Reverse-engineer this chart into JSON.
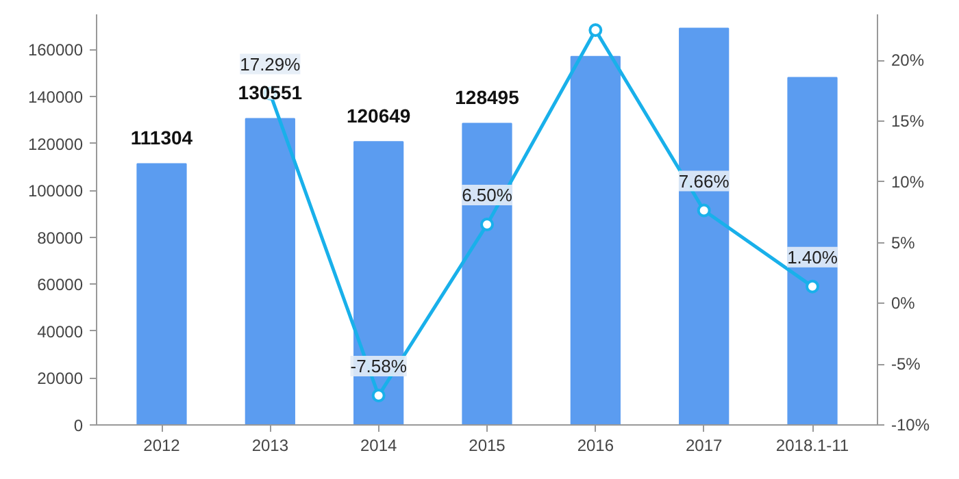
{
  "chart_data": {
    "type": "bar",
    "categories": [
      "2012",
      "2013",
      "2014",
      "2015",
      "2016",
      "2017",
      "2018.1-11"
    ],
    "series": [
      {
        "name": null,
        "color": "#5b9cf0",
        "values": [
          111304,
          130551,
          120649,
          128495,
          157000,
          169000,
          148000
        ],
        "value_labels": [
          "111304",
          "130551",
          "120649",
          "128495",
          null,
          null,
          null
        ]
      },
      {
        "name": null,
        "type": "line",
        "axis": "y2",
        "color": "#19b0ea",
        "values": [
          null,
          17.29,
          -7.58,
          6.5,
          22.5,
          7.66,
          1.4
        ],
        "value_labels": [
          null,
          "17.29%",
          "-7.58%",
          "6.50%",
          null,
          "7.66%",
          "1.40%"
        ]
      }
    ],
    "ylim": [
      0,
      175000
    ],
    "yticks": [
      0,
      20000,
      40000,
      60000,
      80000,
      100000,
      120000,
      140000,
      160000
    ],
    "y2lim": [
      -10,
      23.8
    ],
    "y2ticks": [
      {
        "value": -10,
        "label": "-10%"
      },
      {
        "value": -5,
        "label": "-5%"
      },
      {
        "value": 0,
        "label": "0%"
      },
      {
        "value": 5,
        "label": "5%"
      },
      {
        "value": 10,
        "label": "10%"
      },
      {
        "value": 15,
        "label": "15%"
      },
      {
        "value": 20,
        "label": "20%"
      }
    ],
    "grid": false,
    "marker": "circle",
    "line_style": "solid"
  }
}
